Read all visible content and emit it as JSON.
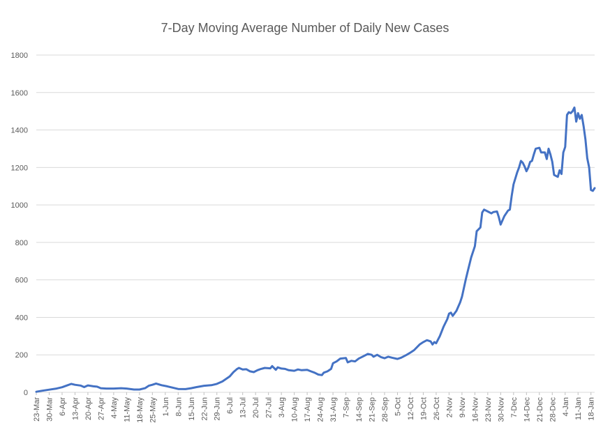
{
  "chart_data": {
    "type": "line",
    "title": "7-Day Moving Average Number of Daily New Cases",
    "xlabel": "",
    "ylabel": "",
    "ylim": [
      0,
      1800
    ],
    "yticks": [
      0,
      200,
      400,
      600,
      800,
      1000,
      1200,
      1400,
      1600,
      1800
    ],
    "grid": true,
    "legend": "none",
    "x_start": "23-Mar",
    "x_end": "20-Jan",
    "xtick_labels": [
      "23-Mar",
      "30-Mar",
      "6-Apr",
      "13-Apr",
      "20-Apr",
      "27-Apr",
      "4-May",
      "11-May",
      "18-May",
      "25-May",
      "1-Jun",
      "8-Jun",
      "15-Jun",
      "22-Jun",
      "29-Jun",
      "6-Jul",
      "13-Jul",
      "20-Jul",
      "27-Jul",
      "3-Aug",
      "10-Aug",
      "17-Aug",
      "24-Aug",
      "31-Aug",
      "7-Sep",
      "14-Sep",
      "21-Sep",
      "28-Sep",
      "5-Oct",
      "12-Oct",
      "19-Oct",
      "26-Oct",
      "2-Nov",
      "9-Nov",
      "16-Nov",
      "23-Nov",
      "30-Nov",
      "7-Dec",
      "14-Dec",
      "21-Dec",
      "28-Dec",
      "4-Jan",
      "11-Jan",
      "18-Jan"
    ],
    "series_color": "#4472c4",
    "points": [
      [
        "23-Mar",
        3
      ],
      [
        "26-Mar",
        8
      ],
      [
        "30-Mar",
        14
      ],
      [
        "3-Apr",
        20
      ],
      [
        "6-Apr",
        27
      ],
      [
        "9-Apr",
        38
      ],
      [
        "11-Apr",
        45
      ],
      [
        "13-Apr",
        40
      ],
      [
        "16-Apr",
        36
      ],
      [
        "18-Apr",
        28
      ],
      [
        "20-Apr",
        37
      ],
      [
        "23-Apr",
        32
      ],
      [
        "25-Apr",
        30
      ],
      [
        "27-Apr",
        22
      ],
      [
        "30-Apr",
        20
      ],
      [
        "4-May",
        20
      ],
      [
        "8-May",
        22
      ],
      [
        "11-May",
        20
      ],
      [
        "15-May",
        15
      ],
      [
        "18-May",
        15
      ],
      [
        "21-May",
        22
      ],
      [
        "23-May",
        35
      ],
      [
        "25-May",
        40
      ],
      [
        "27-May",
        47
      ],
      [
        "30-May",
        38
      ],
      [
        "2-Jun",
        32
      ],
      [
        "5-Jun",
        25
      ],
      [
        "8-Jun",
        18
      ],
      [
        "12-Jun",
        17
      ],
      [
        "15-Jun",
        22
      ],
      [
        "18-Jun",
        28
      ],
      [
        "22-Jun",
        35
      ],
      [
        "26-Jun",
        38
      ],
      [
        "29-Jun",
        45
      ],
      [
        "2-Jul",
        58
      ],
      [
        "6-Jul",
        85
      ],
      [
        "8-Jul",
        108
      ],
      [
        "10-Jul",
        125
      ],
      [
        "11-Jul",
        130
      ],
      [
        "13-Jul",
        122
      ],
      [
        "15-Jul",
        123
      ],
      [
        "17-Jul",
        112
      ],
      [
        "19-Jul",
        108
      ],
      [
        "21-Jul",
        118
      ],
      [
        "23-Jul",
        125
      ],
      [
        "25-Jul",
        130
      ],
      [
        "28-Jul",
        128
      ],
      [
        "29-Jul",
        140
      ],
      [
        "31-Jul",
        120
      ],
      [
        "1-Aug",
        133
      ],
      [
        "3-Aug",
        127
      ],
      [
        "5-Aug",
        125
      ],
      [
        "7-Aug",
        118
      ],
      [
        "10-Aug",
        115
      ],
      [
        "12-Aug",
        122
      ],
      [
        "14-Aug",
        118
      ],
      [
        "17-Aug",
        120
      ],
      [
        "19-Aug",
        112
      ],
      [
        "21-Aug",
        105
      ],
      [
        "23-Aug",
        95
      ],
      [
        "25-Aug",
        92
      ],
      [
        "26-Aug",
        105
      ],
      [
        "28-Aug",
        112
      ],
      [
        "30-Aug",
        125
      ],
      [
        "31-Aug",
        155
      ],
      [
        "2-Sep",
        165
      ],
      [
        "4-Sep",
        180
      ],
      [
        "7-Sep",
        183
      ],
      [
        "8-Sep",
        160
      ],
      [
        "10-Sep",
        168
      ],
      [
        "12-Sep",
        165
      ],
      [
        "14-Sep",
        180
      ],
      [
        "16-Sep",
        190
      ],
      [
        "19-Sep",
        205
      ],
      [
        "21-Sep",
        200
      ],
      [
        "22-Sep",
        190
      ],
      [
        "24-Sep",
        200
      ],
      [
        "26-Sep",
        188
      ],
      [
        "28-Sep",
        182
      ],
      [
        "30-Sep",
        190
      ],
      [
        "2-Oct",
        185
      ],
      [
        "5-Oct",
        178
      ],
      [
        "7-Oct",
        185
      ],
      [
        "10-Oct",
        200
      ],
      [
        "12-Oct",
        212
      ],
      [
        "14-Oct",
        225
      ],
      [
        "17-Oct",
        255
      ],
      [
        "19-Oct",
        268
      ],
      [
        "21-Oct",
        278
      ],
      [
        "23-Oct",
        272
      ],
      [
        "24-Oct",
        255
      ],
      [
        "25-Oct",
        268
      ],
      [
        "26-Oct",
        262
      ],
      [
        "28-Oct",
        300
      ],
      [
        "30-Oct",
        350
      ],
      [
        "1-Nov",
        390
      ],
      [
        "2-Nov",
        420
      ],
      [
        "3-Nov",
        425
      ],
      [
        "4-Nov",
        408
      ],
      [
        "6-Nov",
        435
      ],
      [
        "8-Nov",
        480
      ],
      [
        "9-Nov",
        510
      ],
      [
        "11-Nov",
        600
      ],
      [
        "12-Nov",
        640
      ],
      [
        "14-Nov",
        720
      ],
      [
        "16-Nov",
        780
      ],
      [
        "17-Nov",
        860
      ],
      [
        "19-Nov",
        880
      ],
      [
        "20-Nov",
        960
      ],
      [
        "21-Nov",
        975
      ],
      [
        "23-Nov",
        965
      ],
      [
        "25-Nov",
        955
      ],
      [
        "26-Nov",
        962
      ],
      [
        "28-Nov",
        965
      ],
      [
        "29-Nov",
        935
      ],
      [
        "30-Nov",
        895
      ],
      [
        "2-Dec",
        940
      ],
      [
        "4-Dec",
        970
      ],
      [
        "5-Dec",
        975
      ],
      [
        "6-Dec",
        1050
      ],
      [
        "7-Dec",
        1110
      ],
      [
        "9-Dec",
        1175
      ],
      [
        "10-Dec",
        1200
      ],
      [
        "11-Dec",
        1235
      ],
      [
        "12-Dec",
        1225
      ],
      [
        "13-Dec",
        1205
      ],
      [
        "14-Dec",
        1180
      ],
      [
        "15-Dec",
        1200
      ],
      [
        "16-Dec",
        1230
      ],
      [
        "17-Dec",
        1235
      ],
      [
        "18-Dec",
        1270
      ],
      [
        "19-Dec",
        1300
      ],
      [
        "21-Dec",
        1305
      ],
      [
        "22-Dec",
        1280
      ],
      [
        "24-Dec",
        1280
      ],
      [
        "25-Dec",
        1245
      ],
      [
        "26-Dec",
        1300
      ],
      [
        "27-Dec",
        1270
      ],
      [
        "28-Dec",
        1230
      ],
      [
        "29-Dec",
        1160
      ],
      [
        "31-Dec",
        1150
      ],
      [
        "1-Jan",
        1185
      ],
      [
        "2-Jan",
        1165
      ],
      [
        "3-Jan",
        1280
      ],
      [
        "4-Jan",
        1310
      ],
      [
        "5-Jan",
        1480
      ],
      [
        "6-Jan",
        1495
      ],
      [
        "7-Jan",
        1490
      ],
      [
        "8-Jan",
        1500
      ],
      [
        "9-Jan",
        1520
      ],
      [
        "10-Jan",
        1445
      ],
      [
        "11-Jan",
        1490
      ],
      [
        "12-Jan",
        1460
      ],
      [
        "13-Jan",
        1480
      ],
      [
        "14-Jan",
        1420
      ],
      [
        "15-Jan",
        1350
      ],
      [
        "16-Jan",
        1250
      ],
      [
        "17-Jan",
        1200
      ],
      [
        "18-Jan",
        1080
      ],
      [
        "19-Jan",
        1075
      ],
      [
        "20-Jan",
        1090
      ]
    ]
  }
}
